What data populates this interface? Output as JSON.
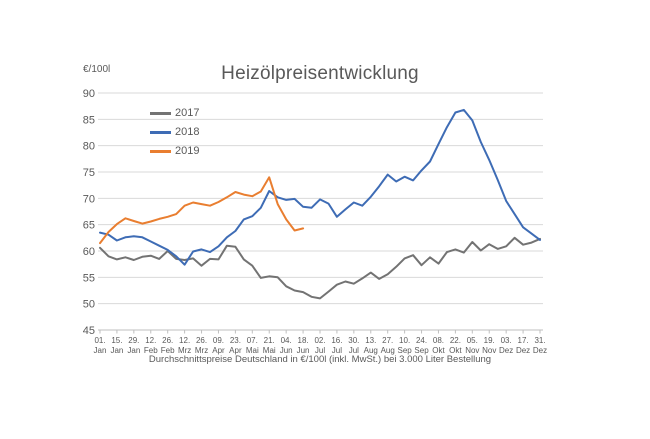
{
  "chart_data": {
    "type": "line",
    "title": "Heizölpreisentwicklung",
    "ylabel": "€/100l",
    "subtitle": "Durchschnittspreise Deutschland in €/100l (inkl. MwSt.) bei 3.000 Liter Bestellung",
    "ylim": [
      45,
      90
    ],
    "ytick_step": 5,
    "yticks": [
      45,
      50,
      55,
      60,
      65,
      70,
      75,
      80,
      85,
      90
    ],
    "grid": true,
    "legend_position": "top-left",
    "xtick_days": [
      1,
      15,
      29,
      43,
      57,
      71,
      85,
      99,
      113,
      127,
      141,
      155,
      169,
      183,
      197,
      211,
      225,
      239,
      253,
      267,
      281,
      295,
      309,
      323,
      337,
      351,
      365
    ],
    "xtick_labels": [
      [
        "01.",
        "Jan"
      ],
      [
        "15.",
        "Jan"
      ],
      [
        "29.",
        "Jan"
      ],
      [
        "12.",
        "Feb"
      ],
      [
        "26.",
        "Feb"
      ],
      [
        "12.",
        "Mrz"
      ],
      [
        "26.",
        "Mrz"
      ],
      [
        "09.",
        "Apr"
      ],
      [
        "23.",
        "Apr"
      ],
      [
        "07.",
        "Mai"
      ],
      [
        "21.",
        "Mai"
      ],
      [
        "04.",
        "Jun"
      ],
      [
        "18.",
        "Jun"
      ],
      [
        "02.",
        "Jul"
      ],
      [
        "16.",
        "Jul"
      ],
      [
        "30.",
        "Jul"
      ],
      [
        "13.",
        "Aug"
      ],
      [
        "27.",
        "Aug"
      ],
      [
        "10.",
        "Sep"
      ],
      [
        "24.",
        "Sep"
      ],
      [
        "08.",
        "Okt"
      ],
      [
        "22.",
        "Okt"
      ],
      [
        "05.",
        "Nov"
      ],
      [
        "19.",
        "Nov"
      ],
      [
        "03.",
        "Dez"
      ],
      [
        "17.",
        "Dez"
      ],
      [
        "31.",
        "Dez"
      ]
    ],
    "x_axis_note": "weekly data points, day of year",
    "series": [
      {
        "name": "2017",
        "color": "#737373",
        "first_day": 1,
        "day_interval": 7,
        "values": [
          60.6,
          59.0,
          58.4,
          58.8,
          58.3,
          58.9,
          59.1,
          58.5,
          60.0,
          58.5,
          58.3,
          58.6,
          57.2,
          58.5,
          58.4,
          61.0,
          60.8,
          58.4,
          57.2,
          54.9,
          55.2,
          55.0,
          53.3,
          52.5,
          52.2,
          51.3,
          51.0,
          52.3,
          53.6,
          54.2,
          53.8,
          54.8,
          55.9,
          54.7,
          55.6,
          57.0,
          58.6,
          59.2,
          57.3,
          58.8,
          57.6,
          59.8,
          60.3,
          59.7,
          61.7,
          60.1,
          61.3,
          60.4,
          60.9,
          62.5,
          61.2,
          61.6,
          62.3
        ]
      },
      {
        "name": "2018",
        "color": "#3E6CB5",
        "first_day": 1,
        "day_interval": 7,
        "values": [
          63.5,
          63.1,
          62.0,
          62.6,
          62.8,
          62.6,
          61.8,
          61.0,
          60.2,
          59.0,
          57.4,
          59.9,
          60.3,
          59.8,
          60.9,
          62.6,
          63.8,
          66.0,
          66.6,
          68.2,
          71.4,
          70.2,
          69.7,
          69.9,
          68.4,
          68.2,
          69.8,
          69.0,
          66.5,
          67.9,
          69.2,
          68.6,
          70.3,
          72.3,
          74.5,
          73.2,
          74.1,
          73.4,
          75.3,
          77.0,
          80.3,
          83.5,
          86.3,
          86.8,
          84.8,
          80.7,
          77.3,
          73.5,
          69.5,
          67.0,
          64.5,
          63.3,
          62.1
        ]
      },
      {
        "name": "2019",
        "color": "#E97E30",
        "first_day": 1,
        "day_interval": 7,
        "values": [
          61.5,
          63.6,
          65.1,
          66.2,
          65.7,
          65.2,
          65.6,
          66.1,
          66.5,
          67.0,
          68.6,
          69.2,
          68.9,
          68.6,
          69.3,
          70.2,
          71.2,
          70.7,
          70.4,
          71.3,
          74.0,
          68.9,
          66.0,
          63.9,
          64.3
        ]
      }
    ],
    "style": {
      "grid_color": "#D9D9D9",
      "axis_color": "#BFBFBF",
      "text_color": "#595959",
      "line_width": 2
    }
  }
}
